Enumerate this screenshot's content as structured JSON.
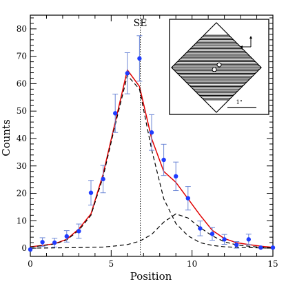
{
  "chart_data": {
    "type": "scatter",
    "xlabel": "Position",
    "ylabel": "Counts",
    "xlim": [
      0,
      15
    ],
    "ylim": [
      -3,
      85
    ],
    "x_ticks": [
      0,
      5,
      10,
      15
    ],
    "y_ticks": [
      0,
      10,
      20,
      30,
      40,
      50,
      60,
      70,
      80
    ],
    "grid": false,
    "legend": "none",
    "vertical_marker": {
      "x": 6.8,
      "label": "SE"
    },
    "series": [
      {
        "kind": "points-with-errors",
        "color": "#1f3cff",
        "errorbar_color": "#6b86d6",
        "x": [
          0,
          0.75,
          1.5,
          2.25,
          3.0,
          3.75,
          4.5,
          5.25,
          6.0,
          6.75,
          7.5,
          8.25,
          9.0,
          9.75,
          10.5,
          11.25,
          12.0,
          12.75,
          13.5,
          14.25,
          15.0
        ],
        "y": [
          -0.5,
          2.2,
          2.0,
          4.3,
          6.2,
          20.2,
          25.2,
          49.2,
          63.8,
          69.2,
          42.2,
          32.2,
          26.2,
          18.2,
          7.2,
          5.2,
          3.2,
          1.2,
          3.2,
          0.2,
          0.2
        ],
        "err": [
          0.5,
          1.6,
          1.6,
          2.1,
          2.6,
          4.5,
          5.0,
          7.0,
          7.5,
          8.3,
          6.5,
          5.7,
          5.2,
          4.3,
          2.7,
          2.3,
          1.8,
          1.2,
          1.9,
          0.5,
          0.5
        ]
      },
      {
        "kind": "line",
        "style": "solid",
        "color": "#e00000",
        "x": [
          0,
          0.75,
          1.5,
          2.25,
          3.0,
          3.75,
          4.5,
          5.25,
          6.0,
          6.75,
          7.5,
          8.25,
          9.0,
          9.75,
          10.5,
          11.25,
          12.0,
          12.75,
          13.5,
          14.25,
          15.0
        ],
        "y": [
          0.5,
          1.0,
          1.6,
          3.2,
          7.0,
          12.5,
          27.0,
          46.0,
          65.0,
          59.0,
          40.0,
          28.0,
          24.0,
          18.0,
          12.0,
          6.5,
          3.5,
          2.0,
          1.3,
          0.7,
          0.3
        ]
      },
      {
        "kind": "line",
        "style": "dashed",
        "color": "#000000",
        "x": [
          0,
          0.75,
          1.5,
          2.25,
          3.0,
          3.75,
          4.5,
          5.25,
          6.0,
          6.75,
          7.5,
          8.25,
          9.0,
          9.75,
          10.5,
          11.25,
          12.0,
          12.75,
          13.5,
          14.25,
          15.0
        ],
        "y": [
          0.4,
          0.9,
          1.5,
          3.0,
          6.5,
          12.0,
          26.0,
          45.0,
          63.0,
          58.0,
          36.0,
          18.0,
          9.0,
          4.5,
          2.0,
          1.0,
          0.5,
          0.3,
          0.2,
          0.1,
          0.0
        ]
      },
      {
        "kind": "line",
        "style": "dashed",
        "color": "#000000",
        "x": [
          0,
          1.5,
          3.0,
          4.5,
          5.25,
          6.0,
          6.75,
          7.5,
          8.25,
          9.0,
          9.75,
          10.5,
          11.25,
          12.0,
          12.75,
          13.5,
          14.25,
          15.0
        ],
        "y": [
          0.0,
          0.1,
          0.2,
          0.4,
          0.8,
          1.3,
          2.5,
          5.0,
          9.5,
          12.5,
          11.0,
          7.5,
          4.5,
          2.3,
          1.2,
          0.7,
          0.3,
          0.1
        ]
      }
    ],
    "inset": {
      "scale_label": "1\"",
      "hatch_lines": 22
    }
  }
}
